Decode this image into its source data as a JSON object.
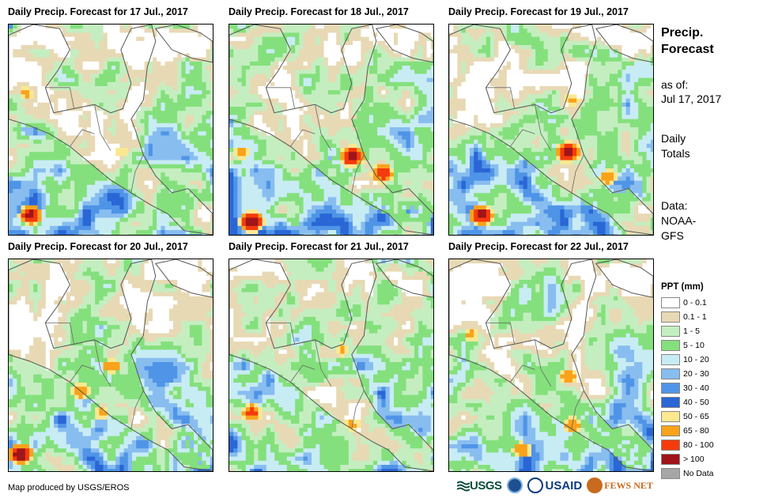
{
  "panels": [
    {
      "title": "Daily Precip. Forecast for 17 Jul., 2017",
      "seed": 17,
      "hot": [
        [
          0.55,
          0.6,
          0.45
        ],
        [
          0.1,
          0.9,
          0.9
        ],
        [
          0.08,
          0.32,
          0.5
        ]
      ]
    },
    {
      "title": "Daily Precip. Forecast for 18 Jul., 2017",
      "seed": 18,
      "hot": [
        [
          0.6,
          0.62,
          1.0
        ],
        [
          0.1,
          0.93,
          1.0
        ],
        [
          0.75,
          0.7,
          0.8
        ],
        [
          0.05,
          0.6,
          0.5
        ]
      ]
    },
    {
      "title": "Daily Precip. Forecast for 19 Jul., 2017",
      "seed": 19,
      "hot": [
        [
          0.58,
          0.6,
          1.0
        ],
        [
          0.15,
          0.9,
          0.95
        ],
        [
          0.6,
          0.35,
          0.5
        ],
        [
          0.78,
          0.72,
          0.6
        ]
      ]
    },
    {
      "title": "Daily Precip. Forecast for 20 Jul., 2017",
      "seed": 20,
      "hot": [
        [
          0.05,
          0.92,
          1.0
        ],
        [
          0.5,
          0.5,
          0.6
        ],
        [
          0.45,
          0.72,
          0.5
        ],
        [
          0.35,
          0.62,
          0.6
        ]
      ]
    },
    {
      "title": "Daily Precip. Forecast for 21 Jul., 2017",
      "seed": 21,
      "hot": [
        [
          0.1,
          0.72,
          0.7
        ],
        [
          0.55,
          0.42,
          0.5
        ],
        [
          0.6,
          0.78,
          0.5
        ]
      ]
    },
    {
      "title": "Daily Precip. Forecast for 22 Jul., 2017",
      "seed": 22,
      "hot": [
        [
          0.58,
          0.55,
          0.6
        ],
        [
          0.35,
          0.9,
          0.6
        ],
        [
          0.6,
          0.78,
          0.6
        ],
        [
          0.1,
          0.35,
          0.5
        ]
      ]
    }
  ],
  "sidebar": {
    "title": "Precip. Forecast",
    "as_of_label": "as of:",
    "as_of_date": "Jul 17, 2017",
    "totals": "Daily Totals",
    "data_source": "Data: NOAA-GFS"
  },
  "legend": {
    "title": "PPT (mm)",
    "items": [
      {
        "label": "0 - 0.1",
        "color": "#ffffff"
      },
      {
        "label": "0.1 - 1",
        "color": "#e8d9b5"
      },
      {
        "label": "1 - 5",
        "color": "#c4eec0"
      },
      {
        "label": "5 - 10",
        "color": "#84e07c"
      },
      {
        "label": "10 - 20",
        "color": "#c8ecf4"
      },
      {
        "label": "20 - 30",
        "color": "#88bdf0"
      },
      {
        "label": "30 - 40",
        "color": "#4f94e6"
      },
      {
        "label": "40 - 50",
        "color": "#2a66d6"
      },
      {
        "label": "50 - 65",
        "color": "#fbe890"
      },
      {
        "label": "65 - 80",
        "color": "#f9a21b"
      },
      {
        "label": "80 - 100",
        "color": "#f53a0c"
      },
      {
        "label": "> 100",
        "color": "#a0141a"
      },
      {
        "label": "No Data",
        "color": "#a6a6a6"
      }
    ]
  },
  "credit": "Map produced by USGS/EROS",
  "logos": {
    "usgs": "USGS",
    "usaid": "USAID",
    "fews": "FEWS NET"
  }
}
